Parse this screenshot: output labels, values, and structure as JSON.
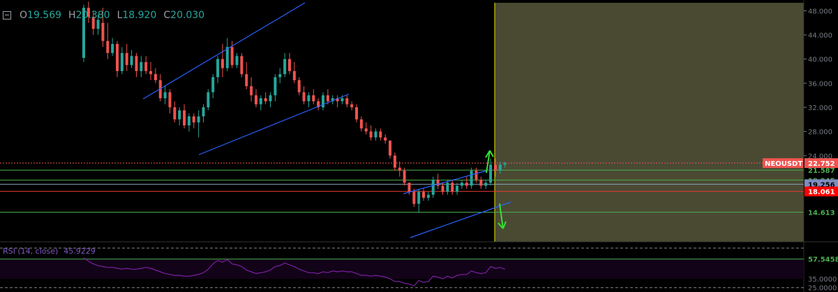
{
  "ohlc": {
    "open_key": "O",
    "open": "19.569",
    "high_key": "H",
    "high": "20.380",
    "low_key": "L",
    "low": "18.920",
    "close_key": "C",
    "close": "20.030"
  },
  "symbol_label": "NEOUSDT",
  "price_tag": "22.752",
  "colors": {
    "up": "#26a69a",
    "down": "#ef5350",
    "zone": "#4a4a33",
    "channel": "#2962ff",
    "support": "#4caf50",
    "resistance": "#e53935",
    "arrow": "#34e034",
    "rsi": "#7b1fa2",
    "axis_text": "#787b86"
  },
  "chart_data": [
    {
      "type": "candlestick",
      "y_axis_ticks": [
        "48.000",
        "44.000",
        "40.000",
        "36.000",
        "32.000",
        "28.000",
        "24.000"
      ],
      "ylim": [
        10.4,
        48.4
      ],
      "candles": [
        [
          40.2,
          49.0,
          39.5,
          48.5
        ],
        [
          48.5,
          49.5,
          46.0,
          47.0
        ],
        [
          47.0,
          48.0,
          44.0,
          45.0
        ],
        [
          45.0,
          47.5,
          44.0,
          46.5
        ],
        [
          46.0,
          48.5,
          42.0,
          43.0
        ],
        [
          43.0,
          46.0,
          40.0,
          41.0
        ],
        [
          41.0,
          43.5,
          40.5,
          42.5
        ],
        [
          42.5,
          43.0,
          37.0,
          38.0
        ],
        [
          38.0,
          42.0,
          37.5,
          41.0
        ],
        [
          41.0,
          42.5,
          38.0,
          39.0
        ],
        [
          39.0,
          41.5,
          38.5,
          40.5
        ],
        [
          40.5,
          41.0,
          37.0,
          38.0
        ],
        [
          38.0,
          40.5,
          37.0,
          39.5
        ],
        [
          39.5,
          40.5,
          37.5,
          38.0
        ],
        [
          38.0,
          39.5,
          36.5,
          37.5
        ],
        [
          37.5,
          38.5,
          36.0,
          36.5
        ],
        [
          36.5,
          37.5,
          33.0,
          33.5
        ],
        [
          33.5,
          35.5,
          32.5,
          34.5
        ],
        [
          34.5,
          35.0,
          31.0,
          32.0
        ],
        [
          32.0,
          33.0,
          29.5,
          30.0
        ],
        [
          30.0,
          32.0,
          29.0,
          31.5
        ],
        [
          31.5,
          32.5,
          28.5,
          29.0
        ],
        [
          29.0,
          31.0,
          28.0,
          30.5
        ],
        [
          30.5,
          31.0,
          28.5,
          29.5
        ],
        [
          29.5,
          31.5,
          27.0,
          30.5
        ],
        [
          30.5,
          32.5,
          29.5,
          32.0
        ],
        [
          32.0,
          35.0,
          31.5,
          34.5
        ],
        [
          34.5,
          37.5,
          33.5,
          37.0
        ],
        [
          37.0,
          40.5,
          36.0,
          40.0
        ],
        [
          40.0,
          42.5,
          37.0,
          38.5
        ],
        [
          38.5,
          43.5,
          38.0,
          42.0
        ],
        [
          42.0,
          43.0,
          38.5,
          39.0
        ],
        [
          39.0,
          41.0,
          38.5,
          40.5
        ],
        [
          40.5,
          41.0,
          37.0,
          37.5
        ],
        [
          37.5,
          39.5,
          35.0,
          35.5
        ],
        [
          35.5,
          37.0,
          33.0,
          34.0
        ],
        [
          34.0,
          35.0,
          32.0,
          32.5
        ],
        [
          32.5,
          34.0,
          31.5,
          33.5
        ],
        [
          33.5,
          34.5,
          32.5,
          33.0
        ],
        [
          33.0,
          34.5,
          32.0,
          34.0
        ],
        [
          34.0,
          37.5,
          33.0,
          37.0
        ],
        [
          37.0,
          38.5,
          36.0,
          37.5
        ],
        [
          37.5,
          41.0,
          37.0,
          40.0
        ],
        [
          40.0,
          41.0,
          37.5,
          38.0
        ],
        [
          38.0,
          39.5,
          36.0,
          36.5
        ],
        [
          36.5,
          37.0,
          34.0,
          34.5
        ],
        [
          34.5,
          35.5,
          32.5,
          33.0
        ],
        [
          33.0,
          34.5,
          32.0,
          34.0
        ],
        [
          34.0,
          35.0,
          32.5,
          33.0
        ],
        [
          33.0,
          33.5,
          31.5,
          32.0
        ],
        [
          32.0,
          34.5,
          31.5,
          34.0
        ],
        [
          34.0,
          35.0,
          32.5,
          33.0
        ],
        [
          33.0,
          34.0,
          32.5,
          33.5
        ],
        [
          33.5,
          34.0,
          32.0,
          33.0
        ],
        [
          33.0,
          34.0,
          32.5,
          33.5
        ],
        [
          33.5,
          34.0,
          32.0,
          32.5
        ],
        [
          32.5,
          33.0,
          31.5,
          32.0
        ],
        [
          32.0,
          32.5,
          29.5,
          30.0
        ],
        [
          30.0,
          30.5,
          28.0,
          28.5
        ],
        [
          28.5,
          29.5,
          27.5,
          28.0
        ],
        [
          28.0,
          29.0,
          26.5,
          27.0
        ],
        [
          27.0,
          28.5,
          26.5,
          28.0
        ],
        [
          28.0,
          28.5,
          26.5,
          27.0
        ],
        [
          27.0,
          27.5,
          26.0,
          26.5
        ],
        [
          26.5,
          26.5,
          23.5,
          24.0
        ],
        [
          24.0,
          24.5,
          21.5,
          22.0
        ],
        [
          22.0,
          23.0,
          20.5,
          21.5
        ],
        [
          21.5,
          22.0,
          19.0,
          19.5
        ],
        [
          19.5,
          19.5,
          17.5,
          18.0
        ],
        [
          18.0,
          18.5,
          15.5,
          16.0
        ],
        [
          16.0,
          18.5,
          14.5,
          18.0
        ],
        [
          18.0,
          18.5,
          16.5,
          17.0
        ],
        [
          17.0,
          18.0,
          16.5,
          17.5
        ],
        [
          17.5,
          20.5,
          17.0,
          20.0
        ],
        [
          20.0,
          21.0,
          18.5,
          19.0
        ],
        [
          19.0,
          19.5,
          17.5,
          18.0
        ],
        [
          18.0,
          20.0,
          17.5,
          19.5
        ],
        [
          19.5,
          20.0,
          17.5,
          18.0
        ],
        [
          18.0,
          19.5,
          17.5,
          19.0
        ],
        [
          19.0,
          20.0,
          18.5,
          19.5
        ],
        [
          19.5,
          20.5,
          18.5,
          19.0
        ],
        [
          19.0,
          22.0,
          18.5,
          21.5
        ],
        [
          21.5,
          22.0,
          19.5,
          20.0
        ],
        [
          20.0,
          20.5,
          18.5,
          19.0
        ],
        [
          19.0,
          20.0,
          18.5,
          19.5
        ],
        [
          19.5,
          23.5,
          19.0,
          22.5
        ],
        [
          22.5,
          23.5,
          20.5,
          21.5
        ],
        [
          21.5,
          23.0,
          21.0,
          22.5
        ],
        [
          22.5,
          23.0,
          22.0,
          22.75
        ]
      ]
    },
    {
      "type": "line",
      "title": "RSI (14, close)",
      "last_value": "45.9229",
      "y_axis_ticks": [
        "57.5458",
        "35.0000",
        "25.0000"
      ],
      "values": [
        59,
        55,
        52,
        50,
        49,
        48,
        48,
        47,
        46,
        47,
        46,
        46,
        47,
        48,
        47,
        45,
        43,
        41,
        40,
        39,
        39,
        38,
        38,
        39,
        40,
        42,
        46,
        52,
        56,
        54,
        57,
        52,
        51,
        49,
        45,
        43,
        41,
        42,
        43,
        45,
        49,
        50,
        53,
        51,
        49,
        46,
        44,
        42,
        42,
        41,
        43,
        42,
        44,
        43,
        44,
        43,
        43,
        41,
        39,
        39,
        38,
        39,
        38,
        37,
        35,
        32,
        32,
        30,
        29,
        27,
        33,
        31,
        32,
        38,
        37,
        35,
        38,
        36,
        39,
        40,
        40,
        44,
        42,
        41,
        42,
        49,
        47,
        48,
        46
      ]
    }
  ]
}
